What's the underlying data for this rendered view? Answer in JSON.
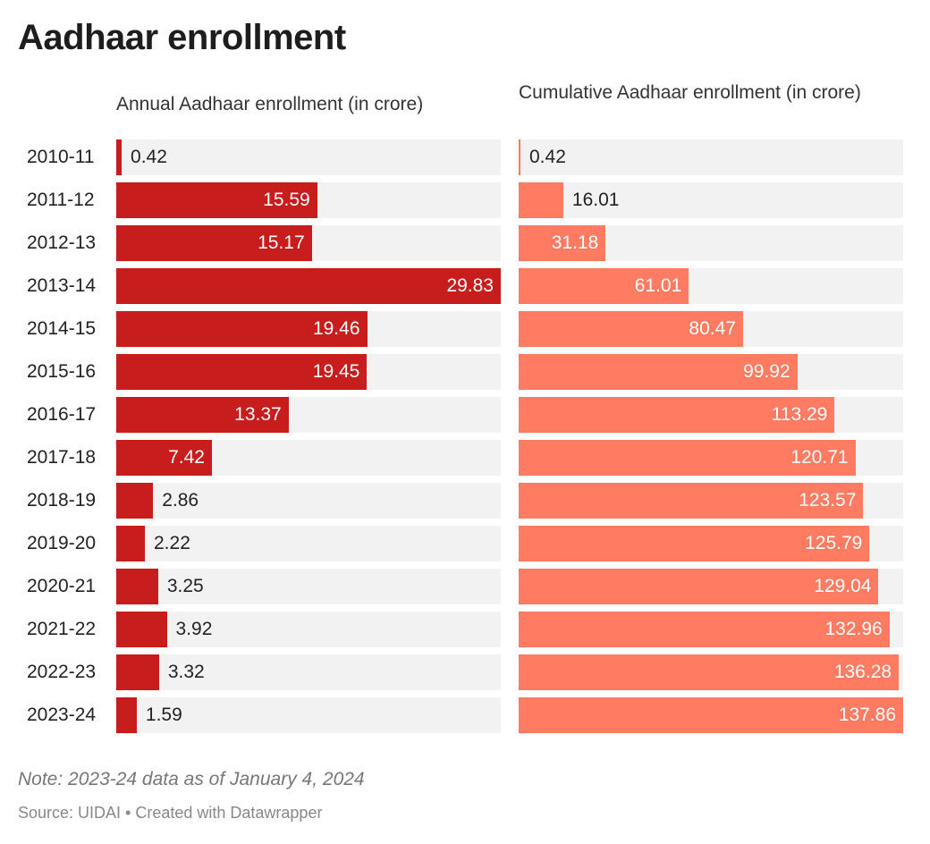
{
  "title": "Aadhaar enrollment",
  "note": "Note: 2023-24 data as of January 4, 2024",
  "source": "Source: UIDAI • Created with Datawrapper",
  "chart_data": [
    {
      "type": "bar",
      "orientation": "horizontal",
      "title": "Annual Aadhaar enrollment (in crore)",
      "color": "#c71e1d",
      "categories": [
        "2010-11",
        "2011-12",
        "2012-13",
        "2013-14",
        "2014-15",
        "2015-16",
        "2016-17",
        "2017-18",
        "2018-19",
        "2019-20",
        "2020-21",
        "2021-22",
        "2022-23",
        "2023-24"
      ],
      "values": [
        0.42,
        15.59,
        15.17,
        29.83,
        19.46,
        19.45,
        13.37,
        7.42,
        2.86,
        2.22,
        3.25,
        3.92,
        3.32,
        1.59
      ],
      "xlim": [
        0,
        29.83
      ]
    },
    {
      "type": "bar",
      "orientation": "horizontal",
      "title": "Cumulative Aadhaar enrollment (in crore)",
      "color": "#ff7b62",
      "categories": [
        "2010-11",
        "2011-12",
        "2012-13",
        "2013-14",
        "2014-15",
        "2015-16",
        "2016-17",
        "2017-18",
        "2018-19",
        "2019-20",
        "2020-21",
        "2021-22",
        "2022-23",
        "2023-24"
      ],
      "values": [
        0.42,
        16.01,
        31.18,
        61.01,
        80.47,
        99.92,
        113.29,
        120.71,
        123.57,
        125.79,
        129.04,
        132.96,
        136.28,
        137.86
      ],
      "xlim": [
        0,
        137.86
      ]
    }
  ]
}
